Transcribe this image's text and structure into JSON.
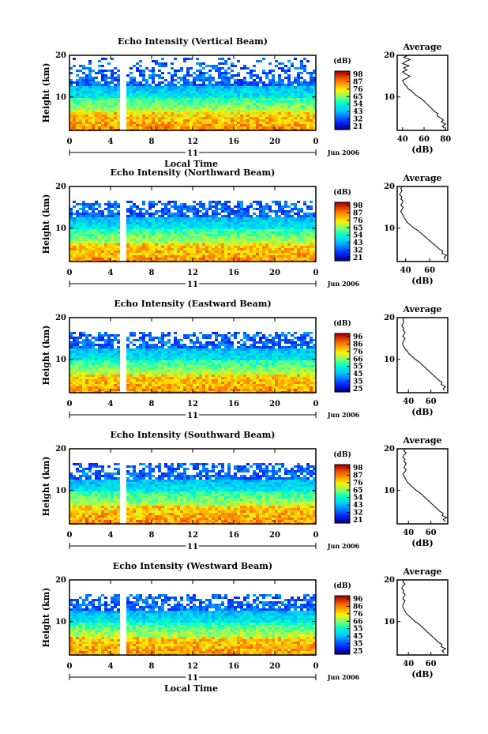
{
  "chart_data": [
    {
      "type": "heatmap",
      "title": "Echo Intensity (Vertical Beam)",
      "ylabel": "Height (km)",
      "xlabel": "Local Time",
      "x_ticks": [
        "0",
        "4",
        "8",
        "12",
        "16",
        "20",
        "0"
      ],
      "y_ticks": [
        "20",
        "10"
      ],
      "xlim": [
        0,
        24
      ],
      "ylim": [
        2,
        20
      ],
      "day_label": "11",
      "date_label": "Jun 2006",
      "data_gap_hours": [
        5.0,
        5.5
      ],
      "colorbar": {
        "label": "(dB)",
        "ticks": [
          "98",
          "87",
          "76",
          "65",
          "54",
          "43",
          "32",
          "21"
        ]
      },
      "average_profile": {
        "title": "Average",
        "xlabel": "(dB)",
        "x_ticks": [
          "40",
          "60",
          "80"
        ],
        "y_ticks": [
          "20",
          "10"
        ],
        "xlim": [
          35,
          82
        ],
        "ylim": [
          2,
          20
        ],
        "height_km": [
          2.5,
          3,
          3.5,
          4,
          4.5,
          5,
          5.5,
          6,
          6.5,
          7,
          7.5,
          8,
          8.5,
          9,
          9.5,
          10,
          10.5,
          11,
          11.5,
          12,
          12.5,
          13,
          13.5,
          14,
          14.5,
          15,
          15.5,
          16,
          16.5,
          17,
          17.5,
          18,
          18.5,
          19,
          19.5,
          20
        ],
        "echo_db": [
          79,
          77,
          80,
          76,
          78,
          75,
          72,
          73,
          70,
          68,
          66,
          64,
          62,
          60,
          58,
          55,
          52,
          50,
          48,
          45,
          44,
          42,
          41,
          40,
          44,
          47,
          43,
          40,
          44,
          41,
          46,
          40,
          43,
          47,
          41,
          45
        ]
      }
    },
    {
      "type": "heatmap",
      "title": "Echo Intensity (Northward Beam)",
      "ylabel": "Height (km)",
      "x_ticks": [
        "0",
        "4",
        "8",
        "12",
        "16",
        "20",
        "0"
      ],
      "y_ticks": [
        "20",
        "10"
      ],
      "xlim": [
        0,
        24
      ],
      "ylim": [
        2,
        20
      ],
      "day_label": "11",
      "date_label": "Jun 2006",
      "data_gap_hours": [
        5.0,
        5.5
      ],
      "colorbar": {
        "label": "(dB)",
        "ticks": [
          "98",
          "87",
          "76",
          "65",
          "54",
          "43",
          "32",
          "21"
        ]
      },
      "average_profile": {
        "title": "Average",
        "xlabel": "(dB)",
        "x_ticks": [
          "40",
          "60"
        ],
        "y_ticks": [
          "20",
          "10"
        ],
        "xlim": [
          33,
          75
        ],
        "ylim": [
          2,
          20
        ],
        "height_km": [
          2.5,
          3,
          3.5,
          4,
          4.5,
          5,
          5.5,
          6,
          6.5,
          7,
          7.5,
          8,
          8.5,
          9,
          9.5,
          10,
          10.5,
          11,
          11.5,
          12,
          12.5,
          13,
          13.5,
          14,
          14.5,
          15,
          15.5,
          16,
          16.5,
          17,
          17.5,
          18,
          18.5,
          19,
          19.5,
          20
        ],
        "echo_db": [
          73,
          72,
          74,
          70,
          71,
          68,
          66,
          64,
          62,
          60,
          58,
          56,
          54,
          52,
          50,
          47,
          45,
          43,
          41,
          40,
          39,
          38,
          37,
          36,
          37,
          38,
          36,
          37,
          38,
          36,
          37,
          35,
          36,
          37,
          36,
          37
        ]
      }
    },
    {
      "type": "heatmap",
      "title": "Echo Intensity (Eastward Beam)",
      "ylabel": "Height (km)",
      "x_ticks": [
        "0",
        "4",
        "8",
        "12",
        "16",
        "20",
        "0"
      ],
      "y_ticks": [
        "20",
        "10"
      ],
      "xlim": [
        0,
        24
      ],
      "ylim": [
        2,
        20
      ],
      "day_label": "11",
      "date_label": "Jun 2006",
      "data_gap_hours": [
        5.0,
        5.5
      ],
      "colorbar": {
        "label": "(dB)",
        "ticks": [
          "96",
          "86",
          "76",
          "66",
          "55",
          "45",
          "35",
          "25"
        ]
      },
      "average_profile": {
        "title": "Average",
        "xlabel": "(dB)",
        "x_ticks": [
          "40",
          "60"
        ],
        "y_ticks": [
          "20",
          "10"
        ],
        "xlim": [
          30,
          75
        ],
        "ylim": [
          2,
          20
        ],
        "height_km": [
          2.5,
          3,
          3.5,
          4,
          4.5,
          5,
          5.5,
          6,
          6.5,
          7,
          7.5,
          8,
          8.5,
          9,
          9.5,
          10,
          10.5,
          11,
          11.5,
          12,
          12.5,
          13,
          13.5,
          14,
          14.5,
          15,
          15.5,
          16,
          16.5,
          17,
          17.5,
          18,
          18.5,
          19,
          19.5,
          20
        ],
        "echo_db": [
          72,
          71,
          73,
          69,
          70,
          67,
          65,
          63,
          61,
          59,
          57,
          55,
          53,
          51,
          49,
          46,
          44,
          42,
          40,
          39,
          37,
          36,
          35,
          35,
          36,
          37,
          35,
          36,
          37,
          35,
          36,
          34,
          35,
          36,
          35,
          36
        ]
      }
    },
    {
      "type": "heatmap",
      "title": "Echo Intensity (Southward Beam)",
      "ylabel": "Height (km)",
      "x_ticks": [
        "0",
        "4",
        "8",
        "12",
        "16",
        "20",
        "0"
      ],
      "y_ticks": [
        "20",
        "10"
      ],
      "xlim": [
        0,
        24
      ],
      "ylim": [
        2,
        20
      ],
      "day_label": "11",
      "date_label": "Jun 2006",
      "data_gap_hours": [
        5.0,
        5.5
      ],
      "colorbar": {
        "label": "(dB)",
        "ticks": [
          "98",
          "87",
          "76",
          "65",
          "54",
          "43",
          "32",
          "21"
        ]
      },
      "average_profile": {
        "title": "Average",
        "xlabel": "(dB)",
        "x_ticks": [
          "40",
          "60"
        ],
        "y_ticks": [
          "20",
          "10"
        ],
        "xlim": [
          30,
          75
        ],
        "ylim": [
          2,
          20
        ],
        "height_km": [
          2.5,
          3,
          3.5,
          4,
          4.5,
          5,
          5.5,
          6,
          6.5,
          7,
          7.5,
          8,
          8.5,
          9,
          9.5,
          10,
          10.5,
          11,
          11.5,
          12,
          12.5,
          13,
          13.5,
          14,
          14.5,
          15,
          15.5,
          16,
          16.5,
          17,
          17.5,
          18,
          18.5,
          19,
          19.5,
          20
        ],
        "echo_db": [
          73,
          71,
          74,
          70,
          71,
          68,
          66,
          64,
          62,
          60,
          58,
          56,
          54,
          52,
          50,
          47,
          45,
          43,
          41,
          39,
          38,
          37,
          36,
          35,
          37,
          38,
          36,
          37,
          38,
          36,
          37,
          35,
          36,
          38,
          36,
          37
        ]
      }
    },
    {
      "type": "heatmap",
      "title": "Echo Intensity (Westward Beam)",
      "ylabel": "Height (km)",
      "xlabel": "Local Time",
      "x_ticks": [
        "0",
        "4",
        "8",
        "12",
        "16",
        "20",
        "0"
      ],
      "y_ticks": [
        "20",
        "10"
      ],
      "xlim": [
        0,
        24
      ],
      "ylim": [
        2,
        20
      ],
      "day_label": "11",
      "date_label": "Jun 2006",
      "data_gap_hours": [
        5.0,
        5.5
      ],
      "colorbar": {
        "label": "(dB)",
        "ticks": [
          "96",
          "86",
          "76",
          "66",
          "55",
          "45",
          "35",
          "25"
        ]
      },
      "average_profile": {
        "title": "Average",
        "xlabel": "(dB)",
        "x_ticks": [
          "40",
          "60"
        ],
        "y_ticks": [
          "20",
          "10"
        ],
        "xlim": [
          30,
          75
        ],
        "ylim": [
          2,
          20
        ],
        "height_km": [
          2.5,
          3,
          3.5,
          4,
          4.5,
          5,
          5.5,
          6,
          6.5,
          7,
          7.5,
          8,
          8.5,
          9,
          9.5,
          10,
          10.5,
          11,
          11.5,
          12,
          12.5,
          13,
          13.5,
          14,
          14.5,
          15,
          15.5,
          16,
          16.5,
          17,
          17.5,
          18,
          18.5,
          19,
          19.5,
          20
        ],
        "echo_db": [
          72,
          70,
          73,
          69,
          70,
          67,
          65,
          63,
          61,
          59,
          57,
          55,
          53,
          51,
          49,
          46,
          44,
          42,
          40,
          38,
          37,
          36,
          35,
          35,
          36,
          37,
          35,
          36,
          37,
          35,
          36,
          34,
          35,
          37,
          35,
          36
        ]
      }
    }
  ]
}
